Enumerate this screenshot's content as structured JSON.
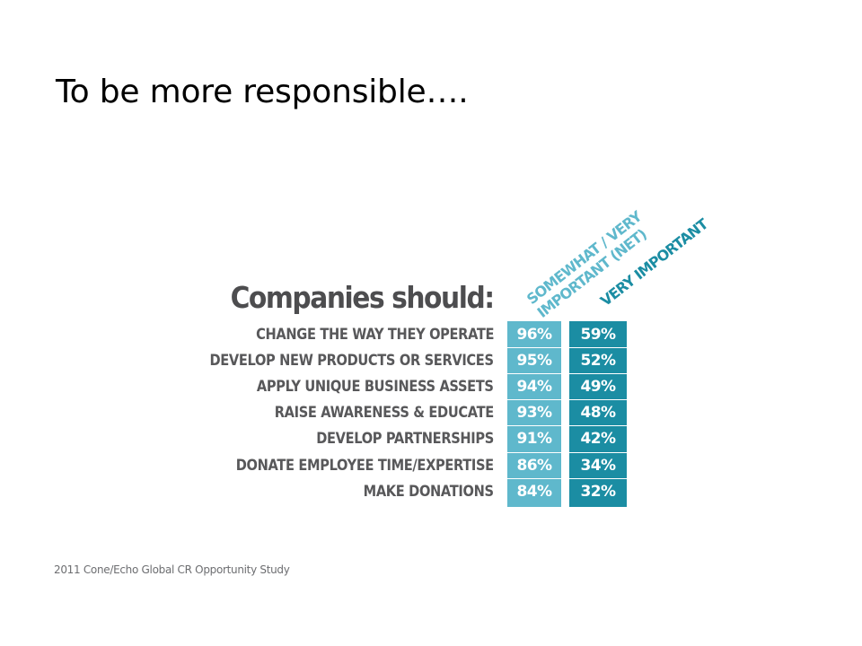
{
  "slide": {
    "title": "To be more responsible….",
    "source": "2011 Cone/Echo Global CR Opportunity Study"
  },
  "colors": {
    "net": "#5fb8cc",
    "very": "#1b8da3",
    "label": "#58585a"
  },
  "chart_data": {
    "type": "table",
    "title": "Companies should:",
    "columns": [
      "SOMEWHAT / VERY IMPORTANT (NET)",
      "VERY IMPORTANT"
    ],
    "column_lines": [
      [
        "SOMEWHAT / VERY",
        "IMPORTANT (NET)"
      ],
      [
        "VERY IMPORTANT"
      ]
    ],
    "categories": [
      "CHANGE THE WAY THEY OPERATE",
      "DEVELOP NEW PRODUCTS OR SERVICES",
      "APPLY UNIQUE BUSINESS ASSETS",
      "RAISE AWARENESS & EDUCATE",
      "DEVELOP PARTNERSHIPS",
      "DONATE EMPLOYEE TIME/EXPERTISE",
      "MAKE DONATIONS"
    ],
    "series": [
      {
        "name": "SOMEWHAT / VERY IMPORTANT (NET)",
        "values": [
          96,
          95,
          94,
          93,
          91,
          86,
          84
        ],
        "display": [
          "96%",
          "95%",
          "94%",
          "93%",
          "91%",
          "86%",
          "84%"
        ]
      },
      {
        "name": "VERY IMPORTANT",
        "values": [
          59,
          52,
          49,
          48,
          42,
          34,
          32
        ],
        "display": [
          "59%",
          "52%",
          "49%",
          "48%",
          "42%",
          "34%",
          "32%"
        ]
      }
    ],
    "unit": "%"
  }
}
